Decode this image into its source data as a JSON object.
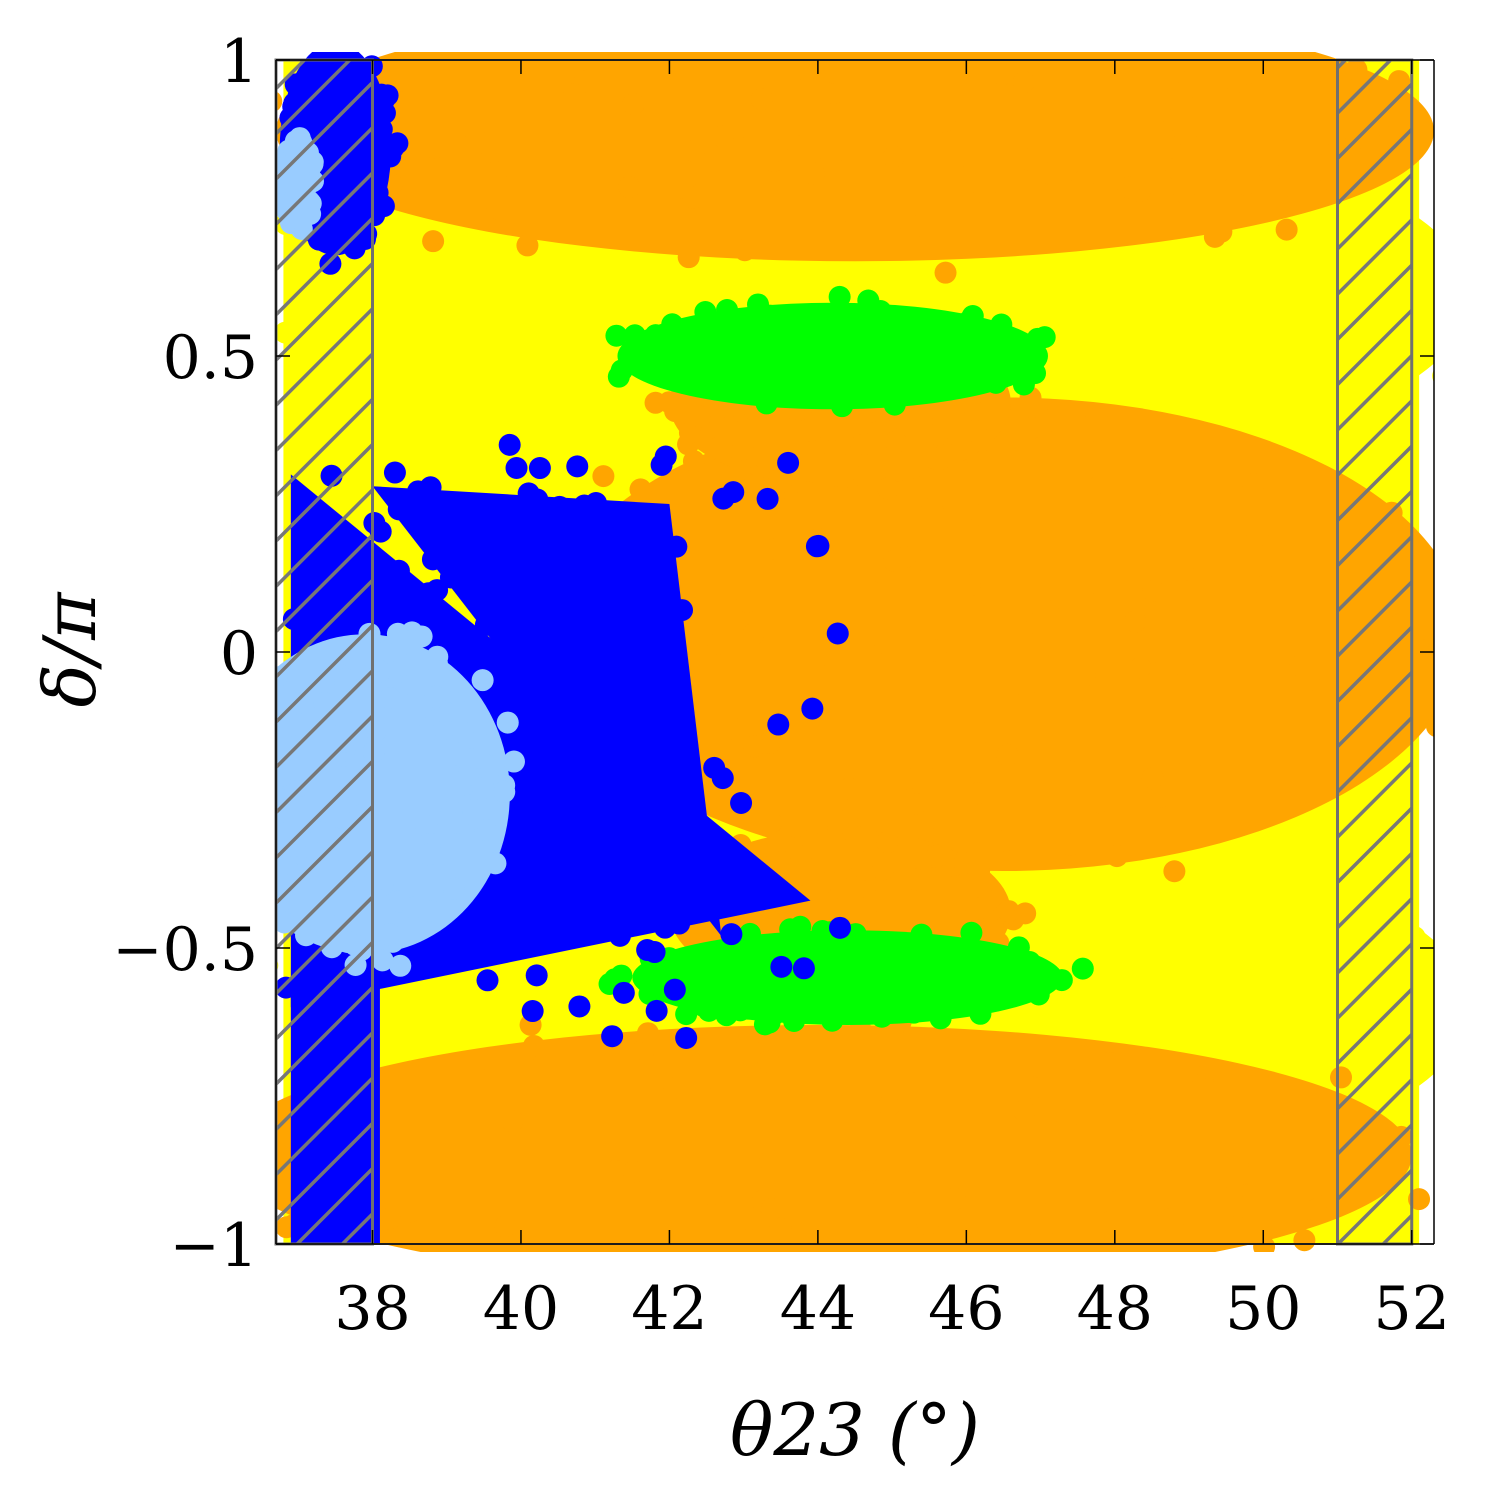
{
  "chart_data": {
    "type": "scatter",
    "title": "",
    "xlabel": "θ23 (°)",
    "ylabel": "δ/π",
    "x_tick_labels": [
      "38",
      "40",
      "42",
      "44",
      "46",
      "48",
      "50",
      "52"
    ],
    "x_ticks": [
      38,
      40,
      42,
      44,
      46,
      48,
      50,
      52
    ],
    "y_tick_labels": [
      "−1",
      "−0.5",
      "0",
      "0.5",
      "1"
    ],
    "y_ticks": [
      -1,
      -0.5,
      0,
      0.5,
      1
    ],
    "xlim": [
      36.7,
      52.3
    ],
    "ylim": [
      -1,
      1
    ],
    "grid": false,
    "legend": "none",
    "excluded_bands": [
      {
        "x_from": 36.7,
        "x_to": 38.0,
        "pattern": "hatched"
      },
      {
        "x_from": 51.0,
        "x_to": 52.0,
        "pattern": "hatched"
      }
    ],
    "series": [
      {
        "name": "yellow",
        "color": "#ffff00",
        "regions": [
          {
            "kind": "ellipse",
            "cx": 45.0,
            "cy": 0.6,
            "rx": 7.8,
            "ry": 0.32
          },
          {
            "kind": "ellipse",
            "cx": 45.0,
            "cy": -0.6,
            "rx": 7.8,
            "ry": 0.32
          },
          {
            "kind": "rect",
            "x0": 36.8,
            "x1": 52.1,
            "y0": -1.0,
            "y1": 1.0
          }
        ]
      },
      {
        "name": "orange",
        "color": "#ffa500",
        "regions": [
          {
            "kind": "ellipse",
            "cx": 46.5,
            "cy": 0.03,
            "rx": 6.2,
            "ry": 0.4
          },
          {
            "kind": "ellipse",
            "cx": 44.5,
            "cy": 0.88,
            "rx": 7.8,
            "ry": 0.22
          },
          {
            "kind": "ellipse",
            "cx": 44.0,
            "cy": -0.85,
            "rx": 8.0,
            "ry": 0.22
          },
          {
            "kind": "ellipse",
            "cx": 44.3,
            "cy": 0.42,
            "rx": 2.3,
            "ry": 0.14
          },
          {
            "kind": "ellipse",
            "cx": 44.3,
            "cy": -0.44,
            "rx": 2.3,
            "ry": 0.14
          }
        ]
      },
      {
        "name": "green",
        "color": "#00ff00",
        "regions": [
          {
            "kind": "ellipse",
            "cx": 44.2,
            "cy": 0.5,
            "rx": 2.9,
            "ry": 0.09
          },
          {
            "kind": "ellipse",
            "cx": 44.4,
            "cy": -0.55,
            "rx": 2.9,
            "ry": 0.08
          }
        ]
      },
      {
        "name": "blue",
        "color": "#0000ff",
        "regions": [
          {
            "kind": "triangle",
            "points": [
              [
                36.9,
                0.3
              ],
              [
                36.9,
                -0.6
              ],
              [
                43.9,
                -0.42
              ]
            ]
          },
          {
            "kind": "triangle",
            "points": [
              [
                38.0,
                0.28
              ],
              [
                42.0,
                0.25
              ],
              [
                42.7,
                -0.48
              ]
            ]
          },
          {
            "kind": "rect",
            "x0": 36.9,
            "x1": 38.1,
            "y0": -1.0,
            "y1": -0.55
          },
          {
            "kind": "ellipse",
            "cx": 37.5,
            "cy": 0.85,
            "rx": 0.75,
            "ry": 0.18
          }
        ]
      },
      {
        "name": "lightblue",
        "color": "#99ccff",
        "regions": [
          {
            "kind": "ellipse",
            "cx": 37.9,
            "cy": -0.24,
            "rx": 1.95,
            "ry": 0.27
          },
          {
            "kind": "ellipse",
            "cx": 37.0,
            "cy": 0.79,
            "rx": 0.2,
            "ry": 0.07
          }
        ]
      }
    ]
  }
}
